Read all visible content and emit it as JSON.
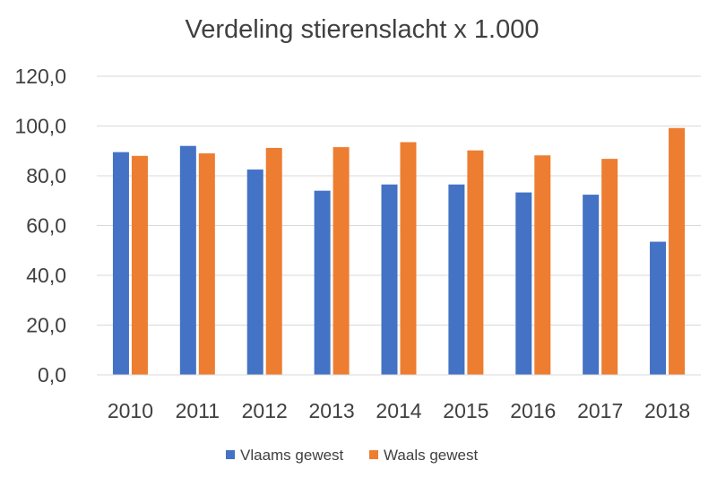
{
  "chart_data": {
    "type": "bar",
    "title": "Verdeling stierenslacht x 1.000",
    "xlabel": "",
    "ylabel": "",
    "categories": [
      "2010",
      "2011",
      "2012",
      "2013",
      "2014",
      "2015",
      "2016",
      "2017",
      "2018"
    ],
    "series": [
      {
        "name": "Vlaams gewest",
        "color": "#4472C4",
        "values": [
          89.5,
          92.0,
          82.5,
          74.0,
          76.5,
          76.5,
          73.3,
          72.4,
          53.5
        ]
      },
      {
        "name": "Waals gewest",
        "color": "#ED7D31",
        "values": [
          88.0,
          89.0,
          91.2,
          91.5,
          93.5,
          90.2,
          88.2,
          86.8,
          99.2
        ]
      }
    ],
    "ylim": [
      0,
      120
    ],
    "yticks": [
      "0,0",
      "20,0",
      "40,0",
      "60,0",
      "80,0",
      "100,0",
      "120,0"
    ],
    "grid": true,
    "legend_position": "bottom"
  }
}
